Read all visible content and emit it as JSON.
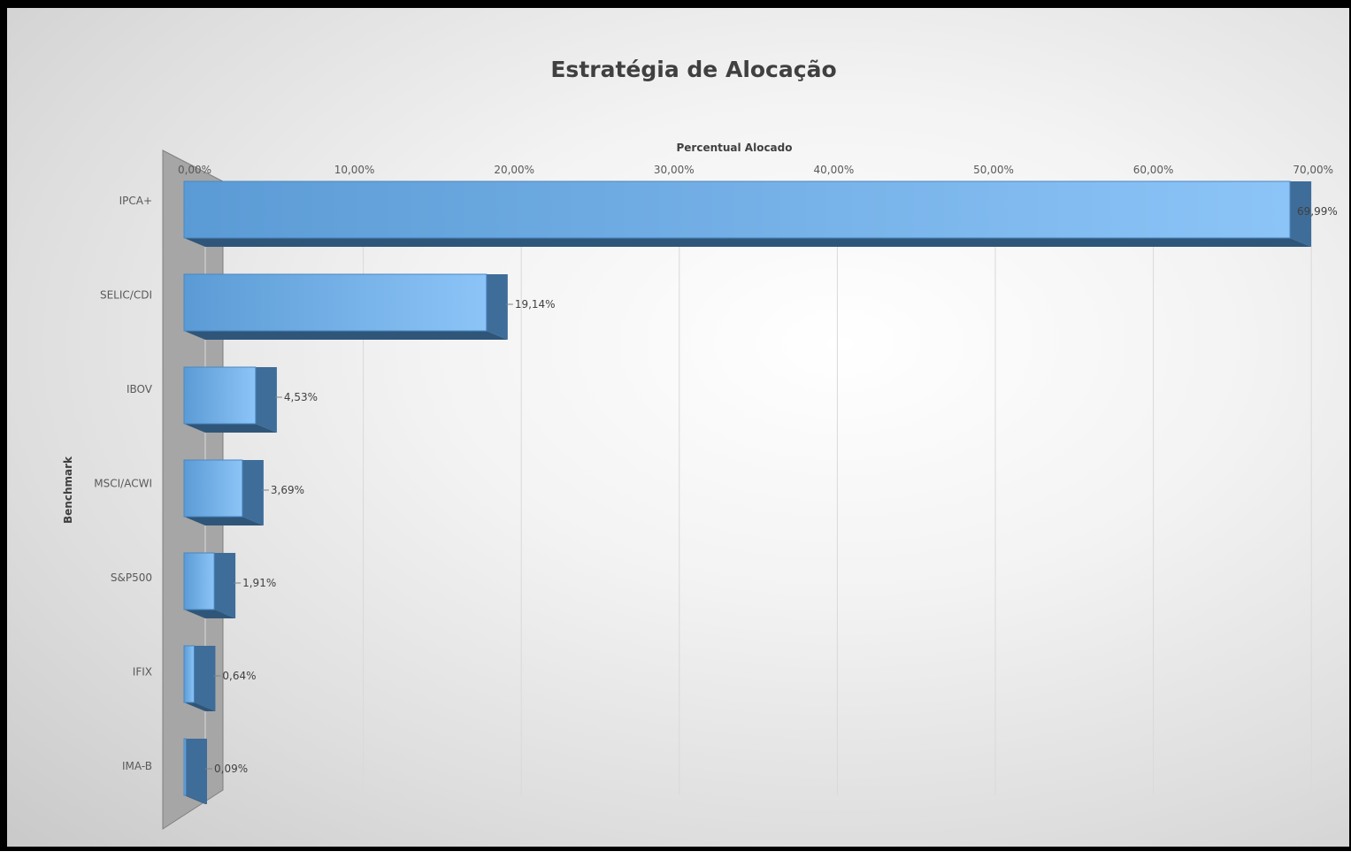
{
  "chart_data": {
    "type": "bar",
    "orientation": "horizontal",
    "three_d": true,
    "title": "Estratégia de Alocação",
    "xlabel": "Percentual Alocado",
    "ylabel": "Benchmark",
    "x_axis_position": "top",
    "xlim": [
      0,
      70
    ],
    "x_ticks": [
      "0,00%",
      "10,00%",
      "20,00%",
      "30,00%",
      "40,00%",
      "50,00%",
      "60,00%",
      "70,00%"
    ],
    "categories": [
      "IPCA+",
      "SELIC/CDI",
      "IBOV",
      "MSCI/ACWI",
      "S&P500",
      "IFIX",
      "IMA-B"
    ],
    "values": [
      69.99,
      19.14,
      4.53,
      3.69,
      1.91,
      0.64,
      0.09
    ],
    "data_labels": [
      "69,99%",
      "19,14%",
      "4,53%",
      "3,69%",
      "1,91%",
      "0,64%",
      "0,09%"
    ],
    "grid": "vertical",
    "legend": "none",
    "colors": {
      "bar_front": "#5b9bd5",
      "bar_front_light": "#7fb6ec",
      "bar_depth": "#3e6d9a",
      "wall": "#a6a6a6",
      "grid": "#d9d9d9"
    }
  }
}
